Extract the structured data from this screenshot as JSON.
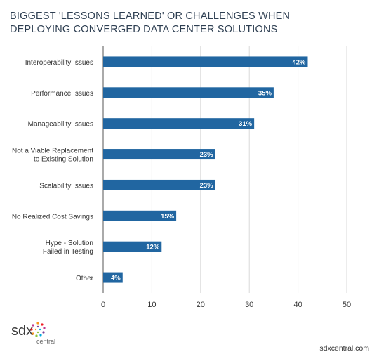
{
  "header": {
    "title_line1": "BIGGEST 'LESSONS LEARNED' OR CHALLENGES WHEN",
    "title_line2": "DEPLOYING CONVERGED DATA CENTER SOLUTIONS"
  },
  "chart_data": {
    "type": "bar",
    "orientation": "horizontal",
    "categories": [
      [
        "Interoperability Issues"
      ],
      [
        "Performance Issues"
      ],
      [
        "Manageability Issues"
      ],
      [
        "Not a Viable Replacement",
        "to Existing Solution"
      ],
      [
        "Scalability Issues"
      ],
      [
        "No Realized Cost Savings"
      ],
      [
        "Hype - Solution",
        "Failed in Testing"
      ],
      [
        "Other"
      ]
    ],
    "values": [
      42,
      35,
      31,
      23,
      23,
      15,
      12,
      4
    ],
    "data_labels": [
      "42%",
      "35%",
      "31%",
      "23%",
      "23%",
      "15%",
      "12%",
      "4%"
    ],
    "xlim": [
      0,
      50
    ],
    "xticks": [
      0,
      10,
      20,
      30,
      40,
      50
    ],
    "grid": "vertical",
    "bar_color": "#2166a1",
    "title": "BIGGEST 'LESSONS LEARNED' OR CHALLENGES WHEN DEPLOYING CONVERGED DATA CENTER SOLUTIONS"
  },
  "footer": {
    "brand_top": "sdx",
    "brand_bottom": "central",
    "site": "sdxcentral.com"
  },
  "colors": {
    "bar": "#2166a1",
    "grid": "#d9d9d9",
    "axis": "#555555",
    "brand_dots": [
      "#f7941d",
      "#ed1c24",
      "#c0398f",
      "#7b3f98",
      "#00a9e0",
      "#8dc63f"
    ]
  }
}
